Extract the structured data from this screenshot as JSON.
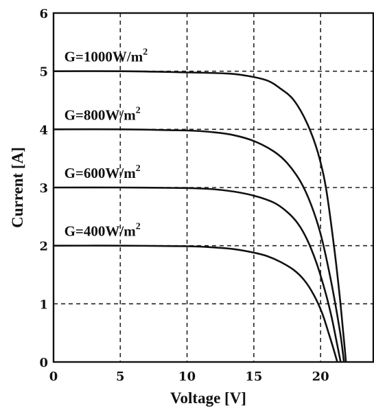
{
  "chart_data": {
    "type": "line",
    "title": "",
    "xlabel": "Voltage [V]",
    "ylabel": "Current [A]",
    "xlim": [
      0,
      24
    ],
    "ylim": [
      0,
      6
    ],
    "x_ticks": [
      "0",
      "5",
      "10",
      "15",
      "20"
    ],
    "y_ticks": [
      "0",
      "1",
      "2",
      "3",
      "4",
      "5",
      "6"
    ],
    "grid": true,
    "series": [
      {
        "name": "G=1000W/m2",
        "label_main": "G=1000W/m",
        "label_sup": "2",
        "x": [
          0,
          5,
          10,
          13,
          14.5,
          16,
          17,
          18,
          19,
          19.8,
          20.4,
          21,
          21.4,
          21.7,
          21.9
        ],
        "y": [
          5.0,
          5.0,
          4.98,
          4.96,
          4.92,
          4.84,
          4.7,
          4.5,
          4.1,
          3.6,
          3.0,
          2.0,
          1.2,
          0.5,
          0.0
        ]
      },
      {
        "name": "G=800W/m2",
        "label_main": "G=800W/m",
        "label_sup": "2",
        "x": [
          0,
          5,
          10,
          12,
          13.5,
          15,
          16.5,
          17.5,
          18.5,
          19.3,
          20,
          20.6,
          21.1,
          21.5,
          21.75
        ],
        "y": [
          4.0,
          4.0,
          3.98,
          3.95,
          3.9,
          3.8,
          3.62,
          3.42,
          3.1,
          2.7,
          2.2,
          1.6,
          1.0,
          0.45,
          0.0
        ]
      },
      {
        "name": "G=600W/m2",
        "label_main": "G=600W/m",
        "label_sup": "2",
        "x": [
          0,
          5,
          10,
          12,
          13.5,
          15,
          16.5,
          17.5,
          18.3,
          19,
          19.7,
          20.3,
          20.8,
          21.2,
          21.5
        ],
        "y": [
          3.0,
          3.0,
          2.99,
          2.97,
          2.93,
          2.86,
          2.74,
          2.58,
          2.38,
          2.1,
          1.7,
          1.25,
          0.8,
          0.35,
          0.0
        ]
      },
      {
        "name": "G=400W/m2",
        "label_main": "G=400W/m",
        "label_sup": "2",
        "x": [
          0,
          5,
          10,
          12,
          13.5,
          15,
          16,
          17,
          18,
          18.8,
          19.5,
          20.1,
          20.6,
          21.0,
          21.25
        ],
        "y": [
          2.0,
          2.0,
          1.99,
          1.97,
          1.94,
          1.88,
          1.82,
          1.72,
          1.58,
          1.4,
          1.15,
          0.85,
          0.5,
          0.2,
          0.0
        ]
      }
    ]
  }
}
